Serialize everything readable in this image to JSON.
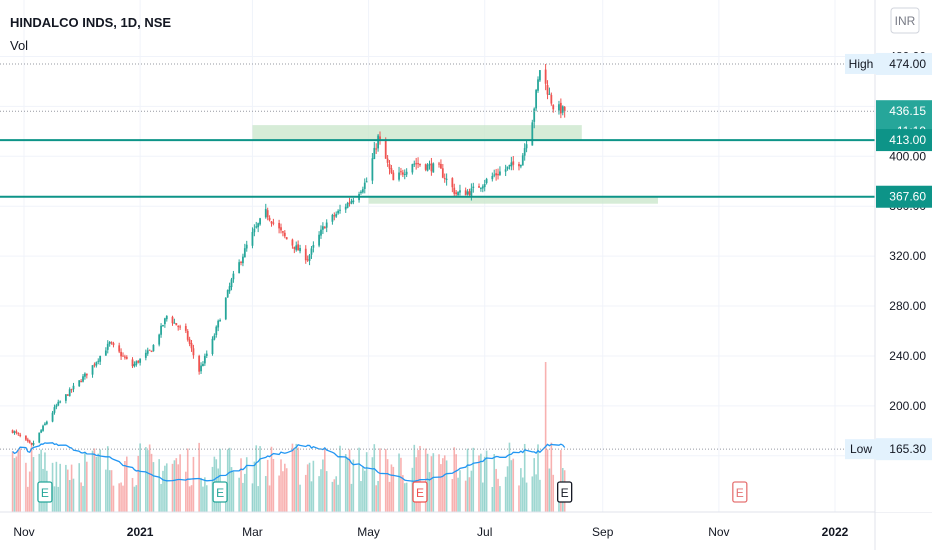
{
  "header": {
    "title": "HINDALCO INDS, 1D, NSE",
    "volume_label": "Vol"
  },
  "currency": "INR",
  "colors": {
    "up": "#26a69a",
    "down": "#ef5350",
    "level_line": "#0d9488",
    "zone_fill": "#c8e6c9",
    "ma_line": "#2196f3",
    "last_price": "#26a69a"
  },
  "price_labels": {
    "high": {
      "name": "High",
      "value": "474.00"
    },
    "low": {
      "name": "Low",
      "value": "165.30"
    },
    "last": {
      "value": "436.15",
      "countdown": "11:19"
    },
    "level_upper": "413.00",
    "level_lower": "367.60"
  },
  "chart_data": {
    "type": "candlestick",
    "y_ticks": [
      "480.00",
      "440.00",
      "400.00",
      "360.00",
      "320.00",
      "280.00",
      "240.00",
      "200.00",
      "160.00"
    ],
    "ylim": [
      143,
      490
    ],
    "x_ticks": [
      "Nov",
      "2021",
      "Mar",
      "May",
      "Jul",
      "Sep",
      "Nov",
      "2022"
    ],
    "horizontal_levels": [
      413.0,
      367.6
    ],
    "support_resistance_zones": [
      {
        "from": "Mar 2021",
        "to": "Aug 2021",
        "low": 413,
        "high": 425
      },
      {
        "from": "May 2021",
        "to": "Sep 2021",
        "low": 362,
        "high": 367
      }
    ],
    "price_path": [
      [
        "2020-10-26",
        180
      ],
      [
        "2020-11-05",
        168
      ],
      [
        "2020-11-18",
        200
      ],
      [
        "2020-12-04",
        226
      ],
      [
        "2020-12-16",
        250
      ],
      [
        "2020-12-28",
        232
      ],
      [
        "2021-01-07",
        245
      ],
      [
        "2021-01-15",
        272
      ],
      [
        "2021-01-25",
        258
      ],
      [
        "2021-02-01",
        228
      ],
      [
        "2021-02-08",
        252
      ],
      [
        "2021-02-18",
        300
      ],
      [
        "2021-02-28",
        335
      ],
      [
        "2021-03-08",
        355
      ],
      [
        "2021-03-18",
        335
      ],
      [
        "2021-03-30",
        318
      ],
      [
        "2021-04-08",
        345
      ],
      [
        "2021-04-22",
        365
      ],
      [
        "2021-04-30",
        380
      ],
      [
        "2021-05-06",
        415
      ],
      [
        "2021-05-14",
        380
      ],
      [
        "2021-05-24",
        395
      ],
      [
        "2021-06-07",
        390
      ],
      [
        "2021-06-16",
        370
      ],
      [
        "2021-06-24",
        372
      ],
      [
        "2021-07-06",
        385
      ],
      [
        "2021-07-20",
        396
      ],
      [
        "2021-07-26",
        430
      ],
      [
        "2021-07-30",
        470
      ],
      [
        "2021-08-06",
        440
      ],
      [
        "2021-08-12",
        436
      ]
    ],
    "series": [
      {
        "name": "Vol",
        "type": "histogram"
      }
    ],
    "earnings_markers": [
      {
        "date": "2020-11-12",
        "label": "E"
      },
      {
        "date": "2021-02-12",
        "label": "E"
      },
      {
        "date": "2021-05-28",
        "label": "E"
      },
      {
        "date": "2021-08-12",
        "label": "E"
      },
      {
        "date": "2021-11-12",
        "label": "E"
      }
    ]
  }
}
